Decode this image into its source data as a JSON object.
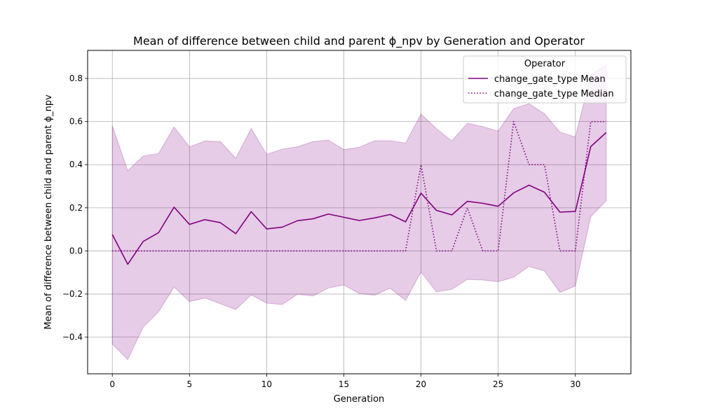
{
  "chart_data": {
    "type": "line",
    "title": "Mean of difference between child and parent ϕ_npv by Generation and Operator",
    "xlabel": "Generation",
    "ylabel": "Mean of difference between child and parent ϕ_npv",
    "xlim": [
      -1.6,
      33.6
    ],
    "ylim": [
      -0.57,
      0.93
    ],
    "x_ticks": [
      0,
      5,
      10,
      15,
      20,
      25,
      30
    ],
    "y_ticks": [
      -0.4,
      -0.2,
      0.0,
      0.2,
      0.4,
      0.6,
      0.8
    ],
    "x_tick_labels": [
      "0",
      "5",
      "10",
      "15",
      "20",
      "25",
      "30"
    ],
    "y_tick_labels": [
      "−0.4",
      "−0.2",
      "0.0",
      "0.2",
      "0.4",
      "0.6",
      "0.8"
    ],
    "grid": true,
    "legend": {
      "title": "Operator",
      "placement": "top-right"
    },
    "x": [
      0,
      1,
      2,
      3,
      4,
      5,
      6,
      7,
      8,
      9,
      10,
      11,
      12,
      13,
      14,
      15,
      16,
      17,
      18,
      19,
      20,
      21,
      22,
      23,
      24,
      25,
      26,
      27,
      28,
      29,
      30,
      31,
      32
    ],
    "series": [
      {
        "name": "change_gate_type Mean",
        "style": "solid",
        "color": "#800080",
        "values": [
          0.076,
          -0.062,
          0.044,
          0.085,
          0.203,
          0.123,
          0.145,
          0.131,
          0.08,
          0.182,
          0.102,
          0.11,
          0.14,
          0.149,
          0.171,
          0.156,
          0.141,
          0.153,
          0.169,
          0.135,
          0.268,
          0.188,
          0.167,
          0.23,
          0.221,
          0.207,
          0.269,
          0.305,
          0.272,
          0.18,
          0.183,
          0.484,
          0.549
        ]
      },
      {
        "name": "change_gate_type Median",
        "style": "dotted",
        "color": "#800080",
        "values": [
          0,
          0,
          0,
          0,
          0,
          0,
          0,
          0,
          0,
          0,
          0,
          0,
          0,
          0,
          0,
          0,
          0,
          0,
          0,
          0,
          0.4,
          0,
          0,
          0.2,
          0,
          0,
          0.6,
          0.4,
          0.4,
          0,
          0,
          0.6,
          0.6
        ]
      }
    ],
    "band": {
      "color": "#800080",
      "opacity": 0.2,
      "upper": [
        0.58,
        0.372,
        0.44,
        0.452,
        0.575,
        0.482,
        0.51,
        0.507,
        0.43,
        0.568,
        0.447,
        0.472,
        0.483,
        0.507,
        0.514,
        0.47,
        0.481,
        0.511,
        0.511,
        0.5,
        0.635,
        0.567,
        0.51,
        0.592,
        0.576,
        0.556,
        0.66,
        0.683,
        0.636,
        0.551,
        0.528,
        0.815,
        0.864
      ],
      "lower": [
        -0.432,
        -0.504,
        -0.353,
        -0.282,
        -0.168,
        -0.235,
        -0.218,
        -0.245,
        -0.272,
        -0.204,
        -0.242,
        -0.249,
        -0.201,
        -0.209,
        -0.172,
        -0.158,
        -0.198,
        -0.205,
        -0.173,
        -0.23,
        -0.098,
        -0.19,
        -0.178,
        -0.132,
        -0.135,
        -0.143,
        -0.122,
        -0.072,
        -0.093,
        -0.192,
        -0.163,
        0.159,
        0.232
      ]
    }
  }
}
